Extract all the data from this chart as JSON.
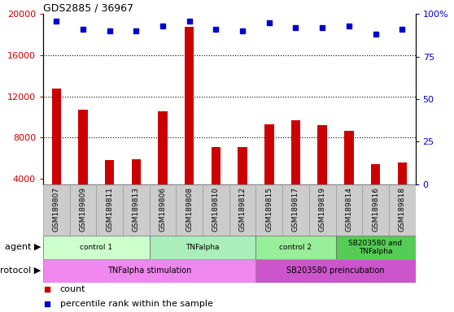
{
  "title": "GDS2885 / 36967",
  "samples": [
    "GSM189807",
    "GSM189809",
    "GSM189811",
    "GSM189813",
    "GSM189806",
    "GSM189808",
    "GSM189810",
    "GSM189812",
    "GSM189815",
    "GSM189817",
    "GSM189819",
    "GSM189814",
    "GSM189816",
    "GSM189818"
  ],
  "counts": [
    12800,
    10700,
    5800,
    5900,
    10600,
    18800,
    7100,
    7100,
    9300,
    9700,
    9200,
    8700,
    5400,
    5600
  ],
  "percentile": [
    96,
    91,
    90,
    90,
    93,
    96,
    91,
    90,
    95,
    92,
    92,
    93,
    88,
    91
  ],
  "bar_color": "#cc0000",
  "dot_color": "#0000cc",
  "ylim_left": [
    3500,
    20000
  ],
  "ylim_right": [
    0,
    100
  ],
  "yticks_left": [
    4000,
    8000,
    12000,
    16000,
    20000
  ],
  "yticks_right": [
    0,
    25,
    50,
    75,
    100
  ],
  "agent_groups": [
    {
      "label": "control 1",
      "start": 0,
      "end": 4,
      "color": "#ccffcc"
    },
    {
      "label": "TNFalpha",
      "start": 4,
      "end": 8,
      "color": "#aaeebb"
    },
    {
      "label": "control 2",
      "start": 8,
      "end": 11,
      "color": "#99ee99"
    },
    {
      "label": "SB203580 and\nTNFalpha",
      "start": 11,
      "end": 14,
      "color": "#55cc55"
    }
  ],
  "protocol_groups": [
    {
      "label": "TNFalpha stimulation",
      "start": 0,
      "end": 8,
      "color": "#ee88ee"
    },
    {
      "label": "SB203580 preincubation",
      "start": 8,
      "end": 14,
      "color": "#cc55cc"
    }
  ],
  "agent_label": "agent",
  "protocol_label": "protocol",
  "legend_count_label": "count",
  "legend_pct_label": "percentile rank within the sample",
  "dotted_grid_color": "#000000",
  "bg_color": "#ffffff",
  "bar_area_bg": "#ffffff",
  "label_area_bg": "#cccccc"
}
